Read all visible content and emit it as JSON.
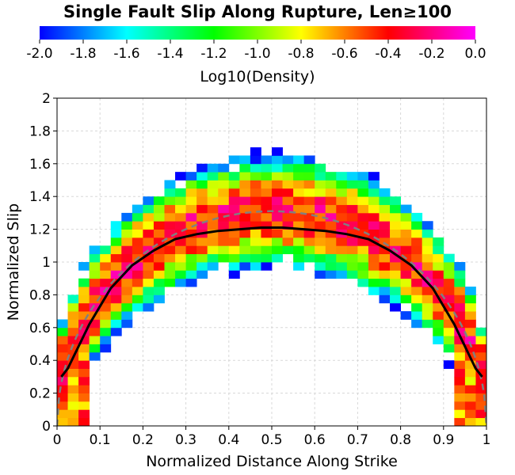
{
  "chart_data": {
    "type": "heatmap",
    "title": "Single Fault Slip Along Rupture, Len≥100",
    "xlabel": "Normalized Distance Along Strike",
    "ylabel": "Normalized Slip",
    "xlim": [
      0,
      1
    ],
    "ylim": [
      0,
      2
    ],
    "x_ticks": [
      "0",
      "0.1",
      "0.2",
      "0.3",
      "0.4",
      "0.5",
      "0.6",
      "0.7",
      "0.8",
      "0.9",
      "1"
    ],
    "y_ticks": [
      "0",
      "0.2",
      "0.4",
      "0.6",
      "0.8",
      "1",
      "1.2",
      "1.4",
      "1.6",
      "1.8",
      "2"
    ],
    "grid": true,
    "colorbar": {
      "label": "Log10(Density)",
      "range": [
        -2.0,
        0.0
      ],
      "ticks": [
        "-2.0",
        "-1.8",
        "-1.6",
        "-1.4",
        "-1.2",
        "-1.0",
        "-0.8",
        "-0.6",
        "-0.4",
        "-0.2",
        "0.0"
      ],
      "colors": [
        "#0000ff",
        "#00ffff",
        "#00ff00",
        "#ffff00",
        "#ff0000",
        "#ff00ff"
      ]
    },
    "grid_size": {
      "nx": 20,
      "ny": 20
    },
    "mean_slip": {
      "x": [
        0.025,
        0.075,
        0.125,
        0.175,
        0.225,
        0.275,
        0.325,
        0.375,
        0.425,
        0.475,
        0.525,
        0.575,
        0.625,
        0.675,
        0.725,
        0.775,
        0.825,
        0.875,
        0.925,
        0.975
      ],
      "y": [
        0.35,
        0.62,
        0.84,
        0.98,
        1.07,
        1.14,
        1.17,
        1.19,
        1.2,
        1.21,
        1.21,
        1.2,
        1.19,
        1.17,
        1.14,
        1.07,
        0.98,
        0.84,
        0.62,
        0.35
      ],
      "x_end": [
        0.01,
        0.99
      ],
      "y_end": [
        0.3,
        0.3
      ],
      "color": "#000000"
    },
    "reference_curve": {
      "peak": 1.31,
      "description_shape": "ellipse",
      "color": "#808080"
    }
  }
}
